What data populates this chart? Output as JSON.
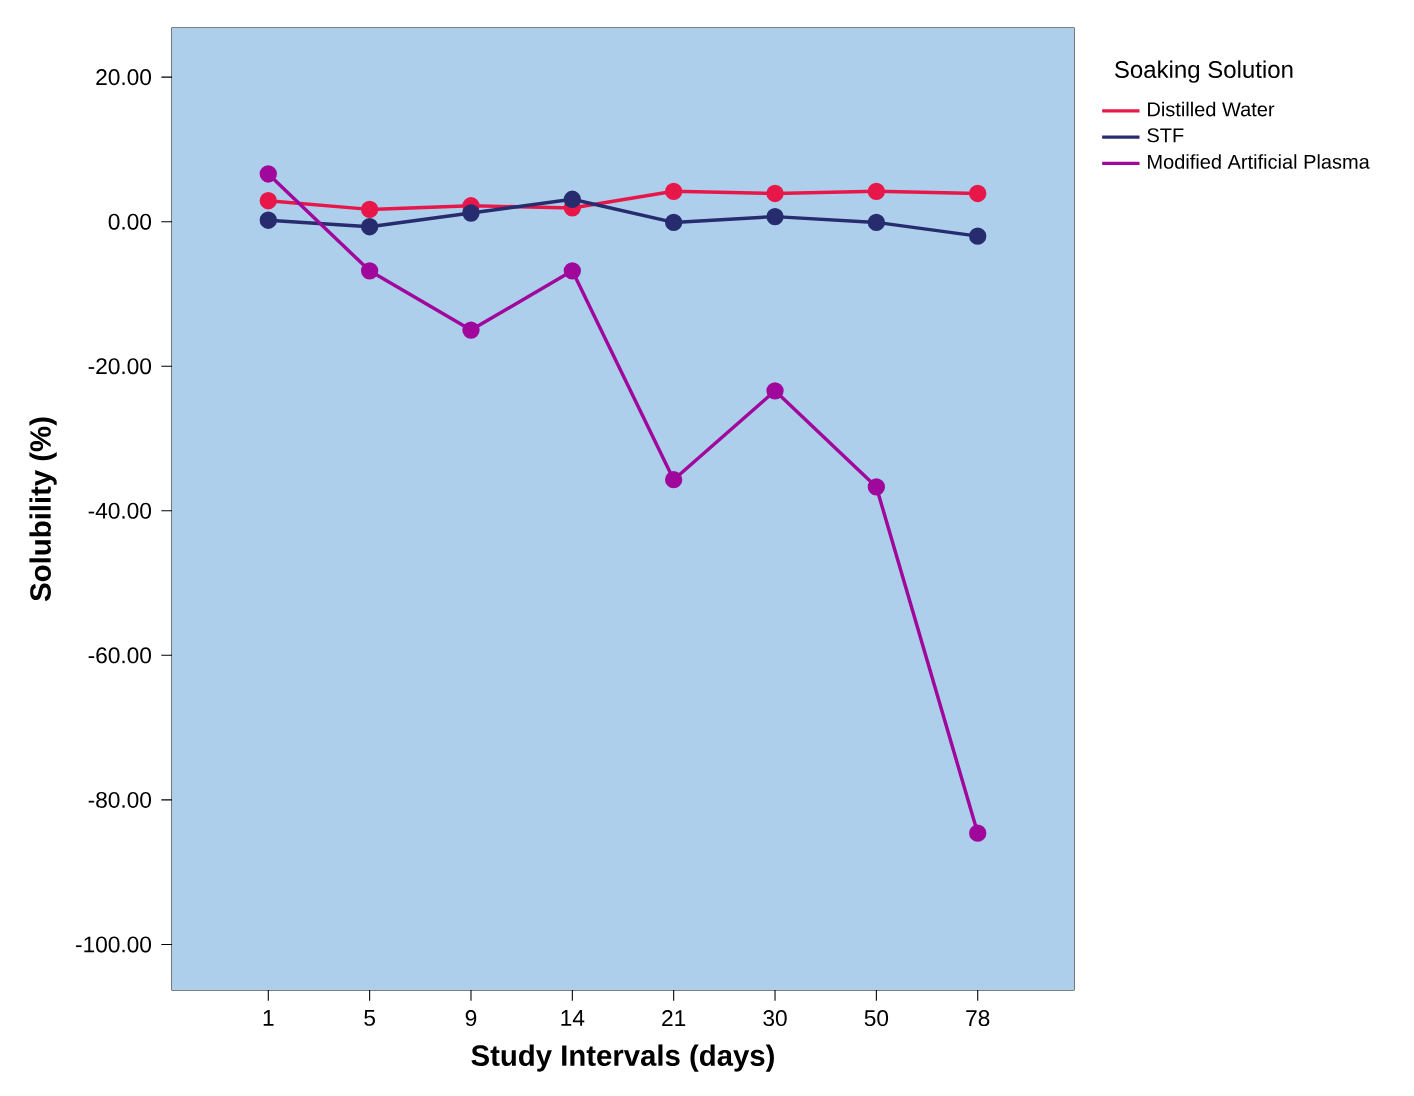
{
  "chart_data": {
    "type": "line",
    "xlabel": "Study Intervals (days)",
    "ylabel": "Solubility (%)",
    "legend_title": "Soaking Solution",
    "legend": "right",
    "marker": "circle",
    "line_style": "solid",
    "categories": [
      "1",
      "5",
      "9",
      "14",
      "21",
      "30",
      "50",
      "78"
    ],
    "ylim": [
      -106.3,
      26.8
    ],
    "yticks": [
      {
        "value": -100,
        "label": "-100.00"
      },
      {
        "value": -80,
        "label": "-80.00"
      },
      {
        "value": -60,
        "label": "-60.00"
      },
      {
        "value": -40,
        "label": "-40.00"
      },
      {
        "value": -20,
        "label": "-20.00"
      },
      {
        "value": 0,
        "label": "0.00"
      },
      {
        "value": 20,
        "label": "20.00"
      }
    ],
    "series": [
      {
        "name": "Distilled Water",
        "color": "#e8174a",
        "values": [
          2.9,
          1.7,
          2.2,
          1.9,
          4.2,
          3.9,
          4.2,
          3.9
        ]
      },
      {
        "name": "STF",
        "color": "#262c6e",
        "values": [
          0.2,
          -0.7,
          1.2,
          3.1,
          -0.1,
          0.7,
          -0.1,
          -2.0
        ]
      },
      {
        "name": "Modified Artificial Plasma",
        "color": "#a0089c",
        "values": [
          6.6,
          -6.8,
          -15.0,
          -6.8,
          -35.7,
          -23.4,
          -36.7,
          -84.6
        ]
      }
    ]
  }
}
